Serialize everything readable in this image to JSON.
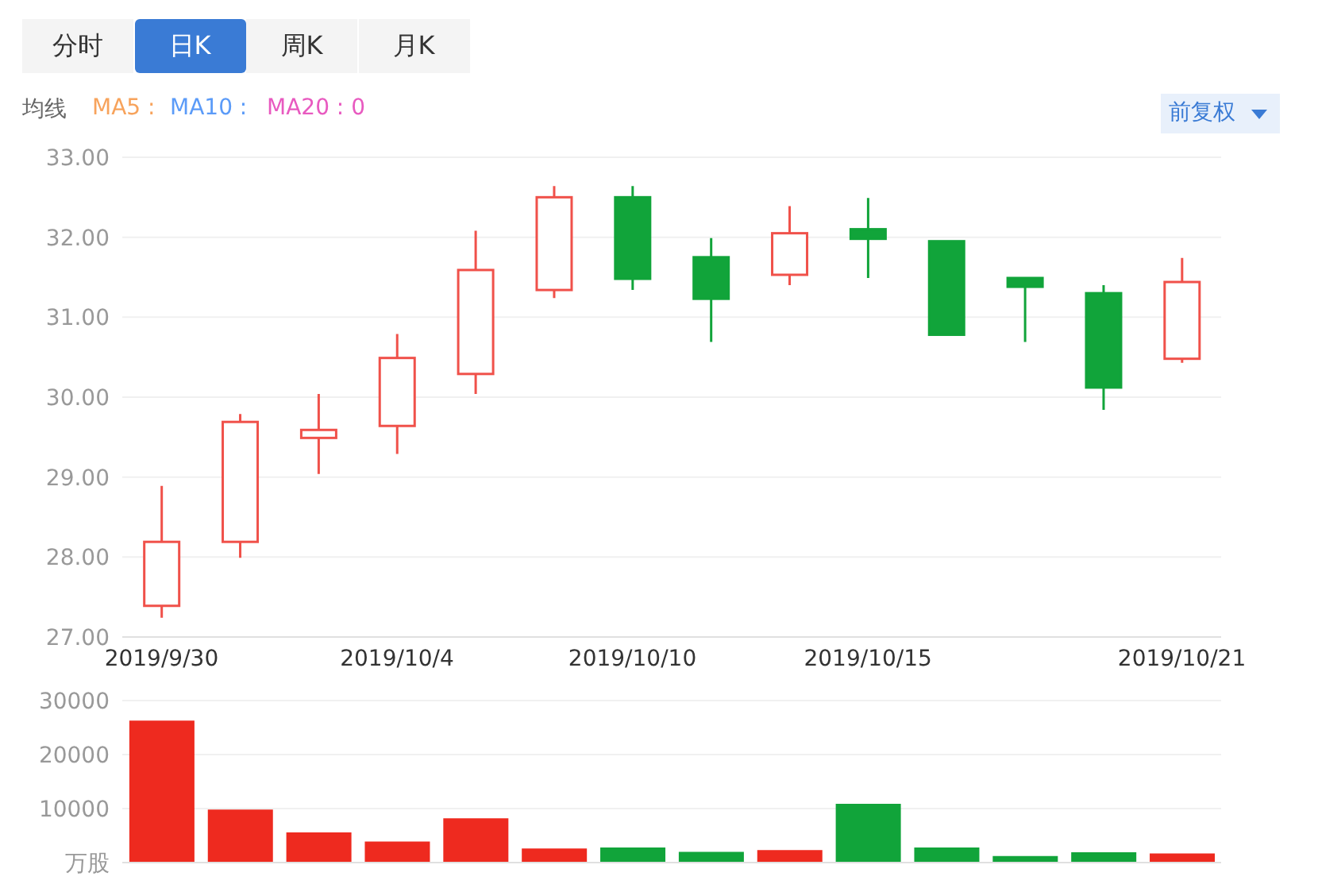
{
  "chart_data": [
    {
      "type": "candlestick",
      "annotations": [
        "分时",
        "日K",
        "周K",
        "月K",
        "均线",
        "MA5 :",
        "MA10 :",
        "MA20 : 0",
        "前复权"
      ],
      "categories": [
        "2019/9/30",
        null,
        null,
        "2019/10/4",
        null,
        null,
        "2019/10/10",
        null,
        null,
        "2019/10/15",
        null,
        null,
        null,
        "2019/10/21"
      ],
      "ohlc": [
        [
          27.39,
          28.89,
          27.24,
          28.19
        ],
        [
          28.19,
          29.79,
          27.99,
          29.69
        ],
        [
          29.49,
          30.04,
          29.04,
          29.59
        ],
        [
          29.64,
          30.79,
          29.29,
          30.49
        ],
        [
          30.29,
          32.08,
          30.04,
          31.59
        ],
        [
          31.34,
          32.64,
          31.24,
          32.5
        ],
        [
          32.5,
          32.64,
          31.34,
          31.48
        ],
        [
          31.75,
          31.99,
          30.69,
          31.23
        ],
        [
          31.53,
          32.39,
          31.4,
          32.05
        ],
        [
          32.1,
          32.49,
          31.49,
          31.98
        ],
        [
          31.95,
          31.95,
          30.78,
          30.78
        ],
        [
          31.49,
          31.49,
          30.69,
          31.38
        ],
        [
          31.3,
          31.4,
          29.84,
          30.12
        ],
        [
          30.48,
          31.74,
          30.43,
          31.44
        ]
      ],
      "colors": [
        "#f0514a",
        "#f0514a",
        "#f0514a",
        "#f0514a",
        "#f0514a",
        "#f0514a",
        "#11a43a",
        "#11a43a",
        "#f0514a",
        "#11a43a",
        "#11a43a",
        "#11a43a",
        "#11a43a",
        "#f0514a"
      ],
      "ylim": [
        27,
        33
      ],
      "yticks": [
        {
          "value": 27,
          "label": "27.00"
        },
        {
          "value": 28,
          "label": "28.00"
        },
        {
          "value": 29,
          "label": "29.00"
        },
        {
          "value": 30,
          "label": "30.00"
        },
        {
          "value": 31,
          "label": "31.00"
        },
        {
          "value": 32,
          "label": "32.00"
        },
        {
          "value": 33,
          "label": "33.00"
        }
      ],
      "grid": "y",
      "legend": false
    },
    {
      "type": "bar",
      "categories": [
        null,
        null,
        null,
        null,
        null,
        null,
        null,
        null,
        null,
        null,
        null,
        null,
        null,
        null
      ],
      "values": [
        26300,
        9800,
        5600,
        3900,
        8200,
        2600,
        2800,
        2000,
        2300,
        10900,
        2800,
        1200,
        1900,
        1700
      ],
      "colors": [
        "#ee2a1f",
        "#ee2a1f",
        "#ee2a1f",
        "#ee2a1f",
        "#ee2a1f",
        "#ee2a1f",
        "#11a43a",
        "#11a43a",
        "#ee2a1f",
        "#11a43a",
        "#11a43a",
        "#11a43a",
        "#11a43a",
        "#ee2a1f"
      ],
      "ylim": [
        0,
        30000
      ],
      "yticks": [
        {
          "value": 0,
          "label": "万股"
        },
        10000,
        20000,
        30000
      ],
      "grid": "y",
      "legend": false,
      "tick_labels": "y"
    }
  ]
}
